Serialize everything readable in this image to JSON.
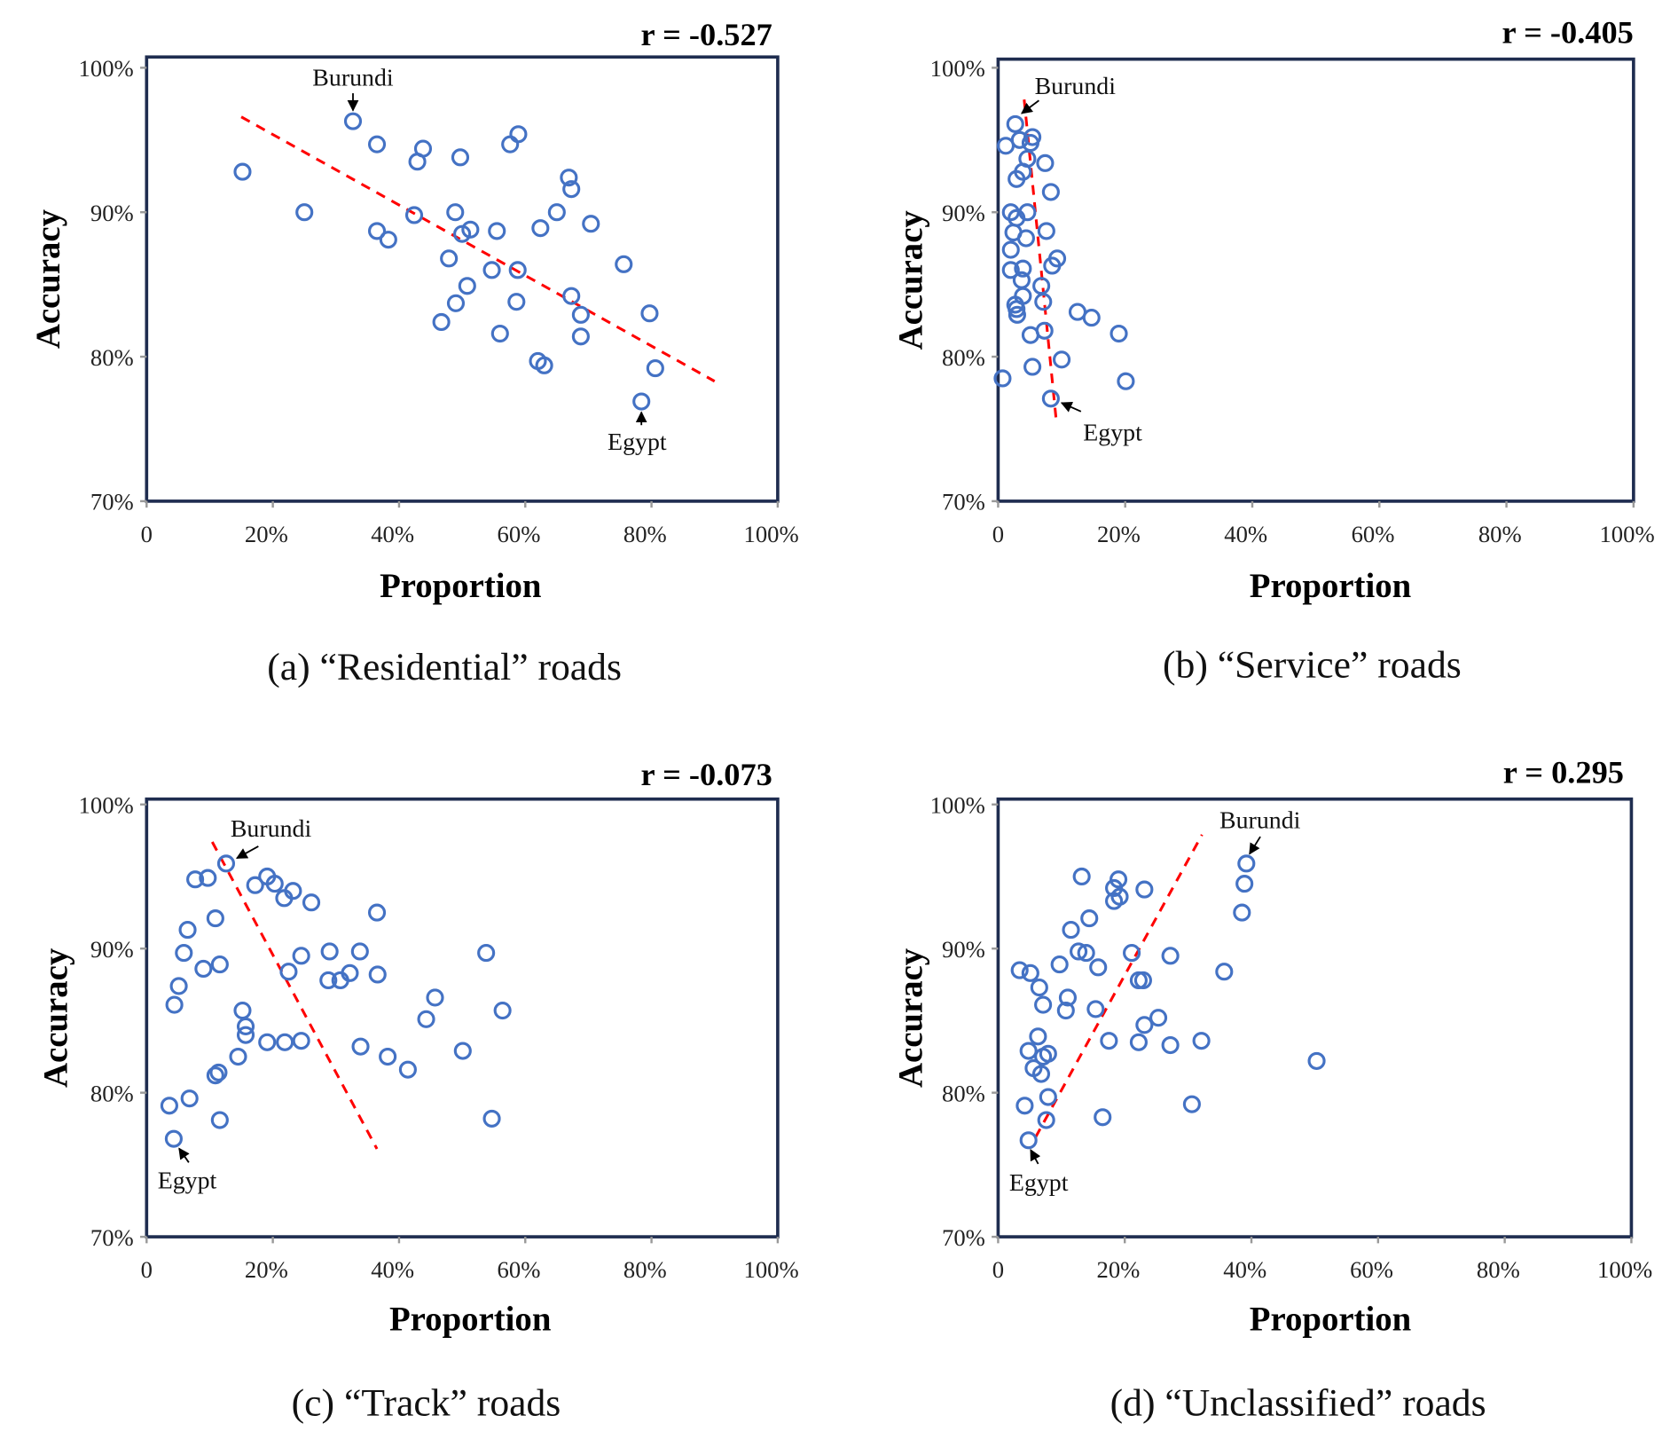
{
  "colors": {
    "marker": "#4472C4",
    "trend": "#FF0000",
    "frame": "#1F2D50"
  },
  "chart_data": [
    {
      "type": "scatter",
      "caption": "(a) “Residential” roads",
      "annotation_r": "r = -0.527",
      "xlabel": "Proportion",
      "ylabel": "Accuracy",
      "xlim": [
        0,
        100
      ],
      "ylim": [
        70,
        100
      ],
      "xticks": [
        "0",
        "20%",
        "40%",
        "60%",
        "80%",
        "100%"
      ],
      "yticks": [
        "70%",
        "80%",
        "90%",
        "100%"
      ],
      "trend": [
        [
          15,
          96.6
        ],
        [
          90,
          78.3
        ]
      ],
      "labels": [
        {
          "text": "Burundi",
          "x": 32.7,
          "y": 96.3
        },
        {
          "text": "Egypt",
          "x": 78.4,
          "y": 76.9
        }
      ],
      "points": [
        [
          15.2,
          92.8
        ],
        [
          25,
          90.0
        ],
        [
          32.7,
          96.3
        ],
        [
          36.5,
          94.7
        ],
        [
          36.5,
          88.7
        ],
        [
          38.3,
          88.1
        ],
        [
          42.9,
          93.5
        ],
        [
          43.8,
          94.4
        ],
        [
          42.4,
          89.8
        ],
        [
          49.7,
          93.8
        ],
        [
          48.9,
          90.0
        ],
        [
          47.9,
          86.8
        ],
        [
          50,
          88.5
        ],
        [
          51.3,
          88.8
        ],
        [
          50.8,
          84.9
        ],
        [
          49,
          83.7
        ],
        [
          46.7,
          82.4
        ],
        [
          55.5,
          88.7
        ],
        [
          54.7,
          86
        ],
        [
          56,
          81.6
        ],
        [
          57.6,
          94.7
        ],
        [
          58.9,
          95.4
        ],
        [
          58.8,
          86
        ],
        [
          58.6,
          83.8
        ],
        [
          62.4,
          88.9
        ],
        [
          65,
          90.0
        ],
        [
          66.9,
          92.4
        ],
        [
          67.3,
          91.6
        ],
        [
          67.3,
          84.2
        ],
        [
          68.8,
          82.9
        ],
        [
          68.8,
          81.4
        ],
        [
          62,
          79.7
        ],
        [
          63,
          79.4
        ],
        [
          70.4,
          89.2
        ],
        [
          75.6,
          86.4
        ],
        [
          79.7,
          83.0
        ],
        [
          80.6,
          79.2
        ],
        [
          78.4,
          76.9
        ]
      ]
    },
    {
      "type": "scatter",
      "caption": "(b) “Service” roads",
      "annotation_r": "r = -0.405",
      "xlabel": "Proportion",
      "ylabel": "Accuracy",
      "xlim": [
        0,
        100
      ],
      "ylim": [
        70,
        100
      ],
      "xticks": [
        "0",
        "20%",
        "40%",
        "60%",
        "80%",
        "100%"
      ],
      "yticks": [
        "70%",
        "80%",
        "90%",
        "100%"
      ],
      "trend": [
        [
          4.1,
          97.8
        ],
        [
          9.1,
          75.8
        ]
      ],
      "labels": [
        {
          "text": "Burundi",
          "x": 2.7,
          "y": 96.1
        },
        {
          "text": "Egypt",
          "x": 8.3,
          "y": 77.1
        }
      ],
      "points": [
        [
          2.7,
          96.1
        ],
        [
          1.2,
          94.6
        ],
        [
          3.4,
          95.0
        ],
        [
          5.4,
          95.2
        ],
        [
          5.1,
          94.8
        ],
        [
          4.6,
          93.7
        ],
        [
          3.9,
          92.8
        ],
        [
          2.9,
          92.3
        ],
        [
          7.4,
          93.4
        ],
        [
          8.3,
          91.4
        ],
        [
          2,
          90.0
        ],
        [
          2.9,
          89.6
        ],
        [
          4.6,
          90.0
        ],
        [
          2.4,
          88.6
        ],
        [
          4.4,
          88.2
        ],
        [
          2,
          87.4
        ],
        [
          7.6,
          88.7
        ],
        [
          9.3,
          86.8
        ],
        [
          8.5,
          86.3
        ],
        [
          3.9,
          86.1
        ],
        [
          2,
          86.0
        ],
        [
          3.7,
          85.3
        ],
        [
          6.8,
          84.9
        ],
        [
          3.9,
          84.2
        ],
        [
          2.7,
          83.6
        ],
        [
          3,
          82.9
        ],
        [
          2.9,
          83.3
        ],
        [
          7.1,
          83.8
        ],
        [
          12.5,
          83.1
        ],
        [
          14.7,
          82.7
        ],
        [
          19,
          81.6
        ],
        [
          5.1,
          81.5
        ],
        [
          7.3,
          81.8
        ],
        [
          10,
          79.8
        ],
        [
          5.4,
          79.3
        ],
        [
          0.7,
          78.5
        ],
        [
          20.1,
          78.3
        ],
        [
          8.3,
          77.1
        ]
      ]
    },
    {
      "type": "scatter",
      "caption": "(c) “Track” roads",
      "annotation_r": "r = -0.073",
      "xlabel": "Proportion",
      "ylabel": "Accuracy",
      "xlim": [
        0,
        100
      ],
      "ylim": [
        70,
        100
      ],
      "xticks": [
        "0",
        "20%",
        "40%",
        "60%",
        "80%",
        "100%"
      ],
      "yticks": [
        "70%",
        "80%",
        "90%",
        "100%"
      ],
      "trend": [
        [
          10.4,
          97.4
        ],
        [
          36.5,
          76.1
        ]
      ],
      "labels": [
        {
          "text": "Burundi",
          "x": 12.6,
          "y": 95.9
        },
        {
          "text": "Egypt",
          "x": 4.3,
          "y": 76.8
        }
      ],
      "points": [
        [
          12.6,
          95.9
        ],
        [
          7.7,
          94.8
        ],
        [
          9.7,
          94.9
        ],
        [
          17.2,
          94.4
        ],
        [
          19.1,
          95.0
        ],
        [
          20.3,
          94.5
        ],
        [
          23.2,
          94.0
        ],
        [
          21.8,
          93.5
        ],
        [
          26.1,
          93.2
        ],
        [
          36.5,
          92.5
        ],
        [
          10.9,
          92.1
        ],
        [
          6.5,
          91.3
        ],
        [
          5.9,
          89.7
        ],
        [
          9,
          88.6
        ],
        [
          11.6,
          88.9
        ],
        [
          5.1,
          87.4
        ],
        [
          4.4,
          86.1
        ],
        [
          24.5,
          89.5
        ],
        [
          22.5,
          88.4
        ],
        [
          29,
          89.8
        ],
        [
          28.8,
          87.8
        ],
        [
          30.7,
          87.8
        ],
        [
          32.2,
          88.3
        ],
        [
          33.8,
          89.8
        ],
        [
          36.6,
          88.2
        ],
        [
          15.2,
          85.7
        ],
        [
          15.7,
          84.6
        ],
        [
          15.7,
          84.0
        ],
        [
          14.5,
          82.5
        ],
        [
          10.9,
          81.2
        ],
        [
          11.4,
          81.4
        ],
        [
          19.1,
          83.5
        ],
        [
          21.9,
          83.5
        ],
        [
          24.5,
          83.6
        ],
        [
          33.9,
          83.2
        ],
        [
          38.2,
          82.5
        ],
        [
          41.4,
          81.6
        ],
        [
          44.3,
          85.1
        ],
        [
          45.7,
          86.6
        ],
        [
          50.1,
          82.9
        ],
        [
          53.8,
          89.7
        ],
        [
          56.4,
          85.7
        ],
        [
          54.7,
          78.2
        ],
        [
          3.6,
          79.1
        ],
        [
          6.8,
          79.6
        ],
        [
          11.6,
          78.1
        ],
        [
          4.3,
          76.8
        ]
      ]
    },
    {
      "type": "scatter",
      "caption": "(d) “Unclassified” roads",
      "annotation_r": "r = 0.295",
      "xlabel": "Proportion",
      "ylabel": "Accuracy",
      "xlim": [
        0,
        100
      ],
      "ylim": [
        70,
        100
      ],
      "xticks": [
        "0",
        "20%",
        "40%",
        "60%",
        "80%",
        "100%"
      ],
      "yticks": [
        "70%",
        "80%",
        "90%",
        "100%"
      ],
      "trend": [
        [
          5.9,
          76.9
        ],
        [
          32.2,
          97.9
        ]
      ],
      "labels": [
        {
          "text": "Burundi",
          "x": 39.2,
          "y": 95.9
        },
        {
          "text": "Egypt",
          "x": 4.8,
          "y": 76.7
        }
      ],
      "points": [
        [
          39.2,
          95.9
        ],
        [
          38.9,
          94.5
        ],
        [
          38.5,
          92.5
        ],
        [
          13.2,
          95.0
        ],
        [
          19,
          94.8
        ],
        [
          18.3,
          94.2
        ],
        [
          18.3,
          93.3
        ],
        [
          19.2,
          93.6
        ],
        [
          23.1,
          94.1
        ],
        [
          14.4,
          92.1
        ],
        [
          11.5,
          91.3
        ],
        [
          12.7,
          89.8
        ],
        [
          13.9,
          89.7
        ],
        [
          9.7,
          88.9
        ],
        [
          21.1,
          89.7
        ],
        [
          27.2,
          89.5
        ],
        [
          35.7,
          88.4
        ],
        [
          3.4,
          88.5
        ],
        [
          5.1,
          88.3
        ],
        [
          6.5,
          87.3
        ],
        [
          7.1,
          86.1
        ],
        [
          11,
          86.6
        ],
        [
          10.7,
          85.7
        ],
        [
          15.4,
          85.8
        ],
        [
          15.8,
          88.7
        ],
        [
          22.2,
          87.8
        ],
        [
          22.9,
          87.8
        ],
        [
          23.1,
          84.7
        ],
        [
          25.3,
          85.2
        ],
        [
          22.2,
          83.5
        ],
        [
          17.5,
          83.6
        ],
        [
          27.2,
          83.3
        ],
        [
          32.1,
          83.6
        ],
        [
          6.3,
          83.9
        ],
        [
          4.8,
          82.9
        ],
        [
          7.9,
          82.7
        ],
        [
          7.1,
          82.5
        ],
        [
          5.6,
          81.7
        ],
        [
          6.8,
          81.3
        ],
        [
          50.3,
          82.2
        ],
        [
          4.2,
          79.1
        ],
        [
          7.9,
          79.7
        ],
        [
          7.6,
          78.1
        ],
        [
          16.5,
          78.3
        ],
        [
          30.6,
          79.2
        ],
        [
          4.8,
          76.7
        ]
      ]
    }
  ]
}
